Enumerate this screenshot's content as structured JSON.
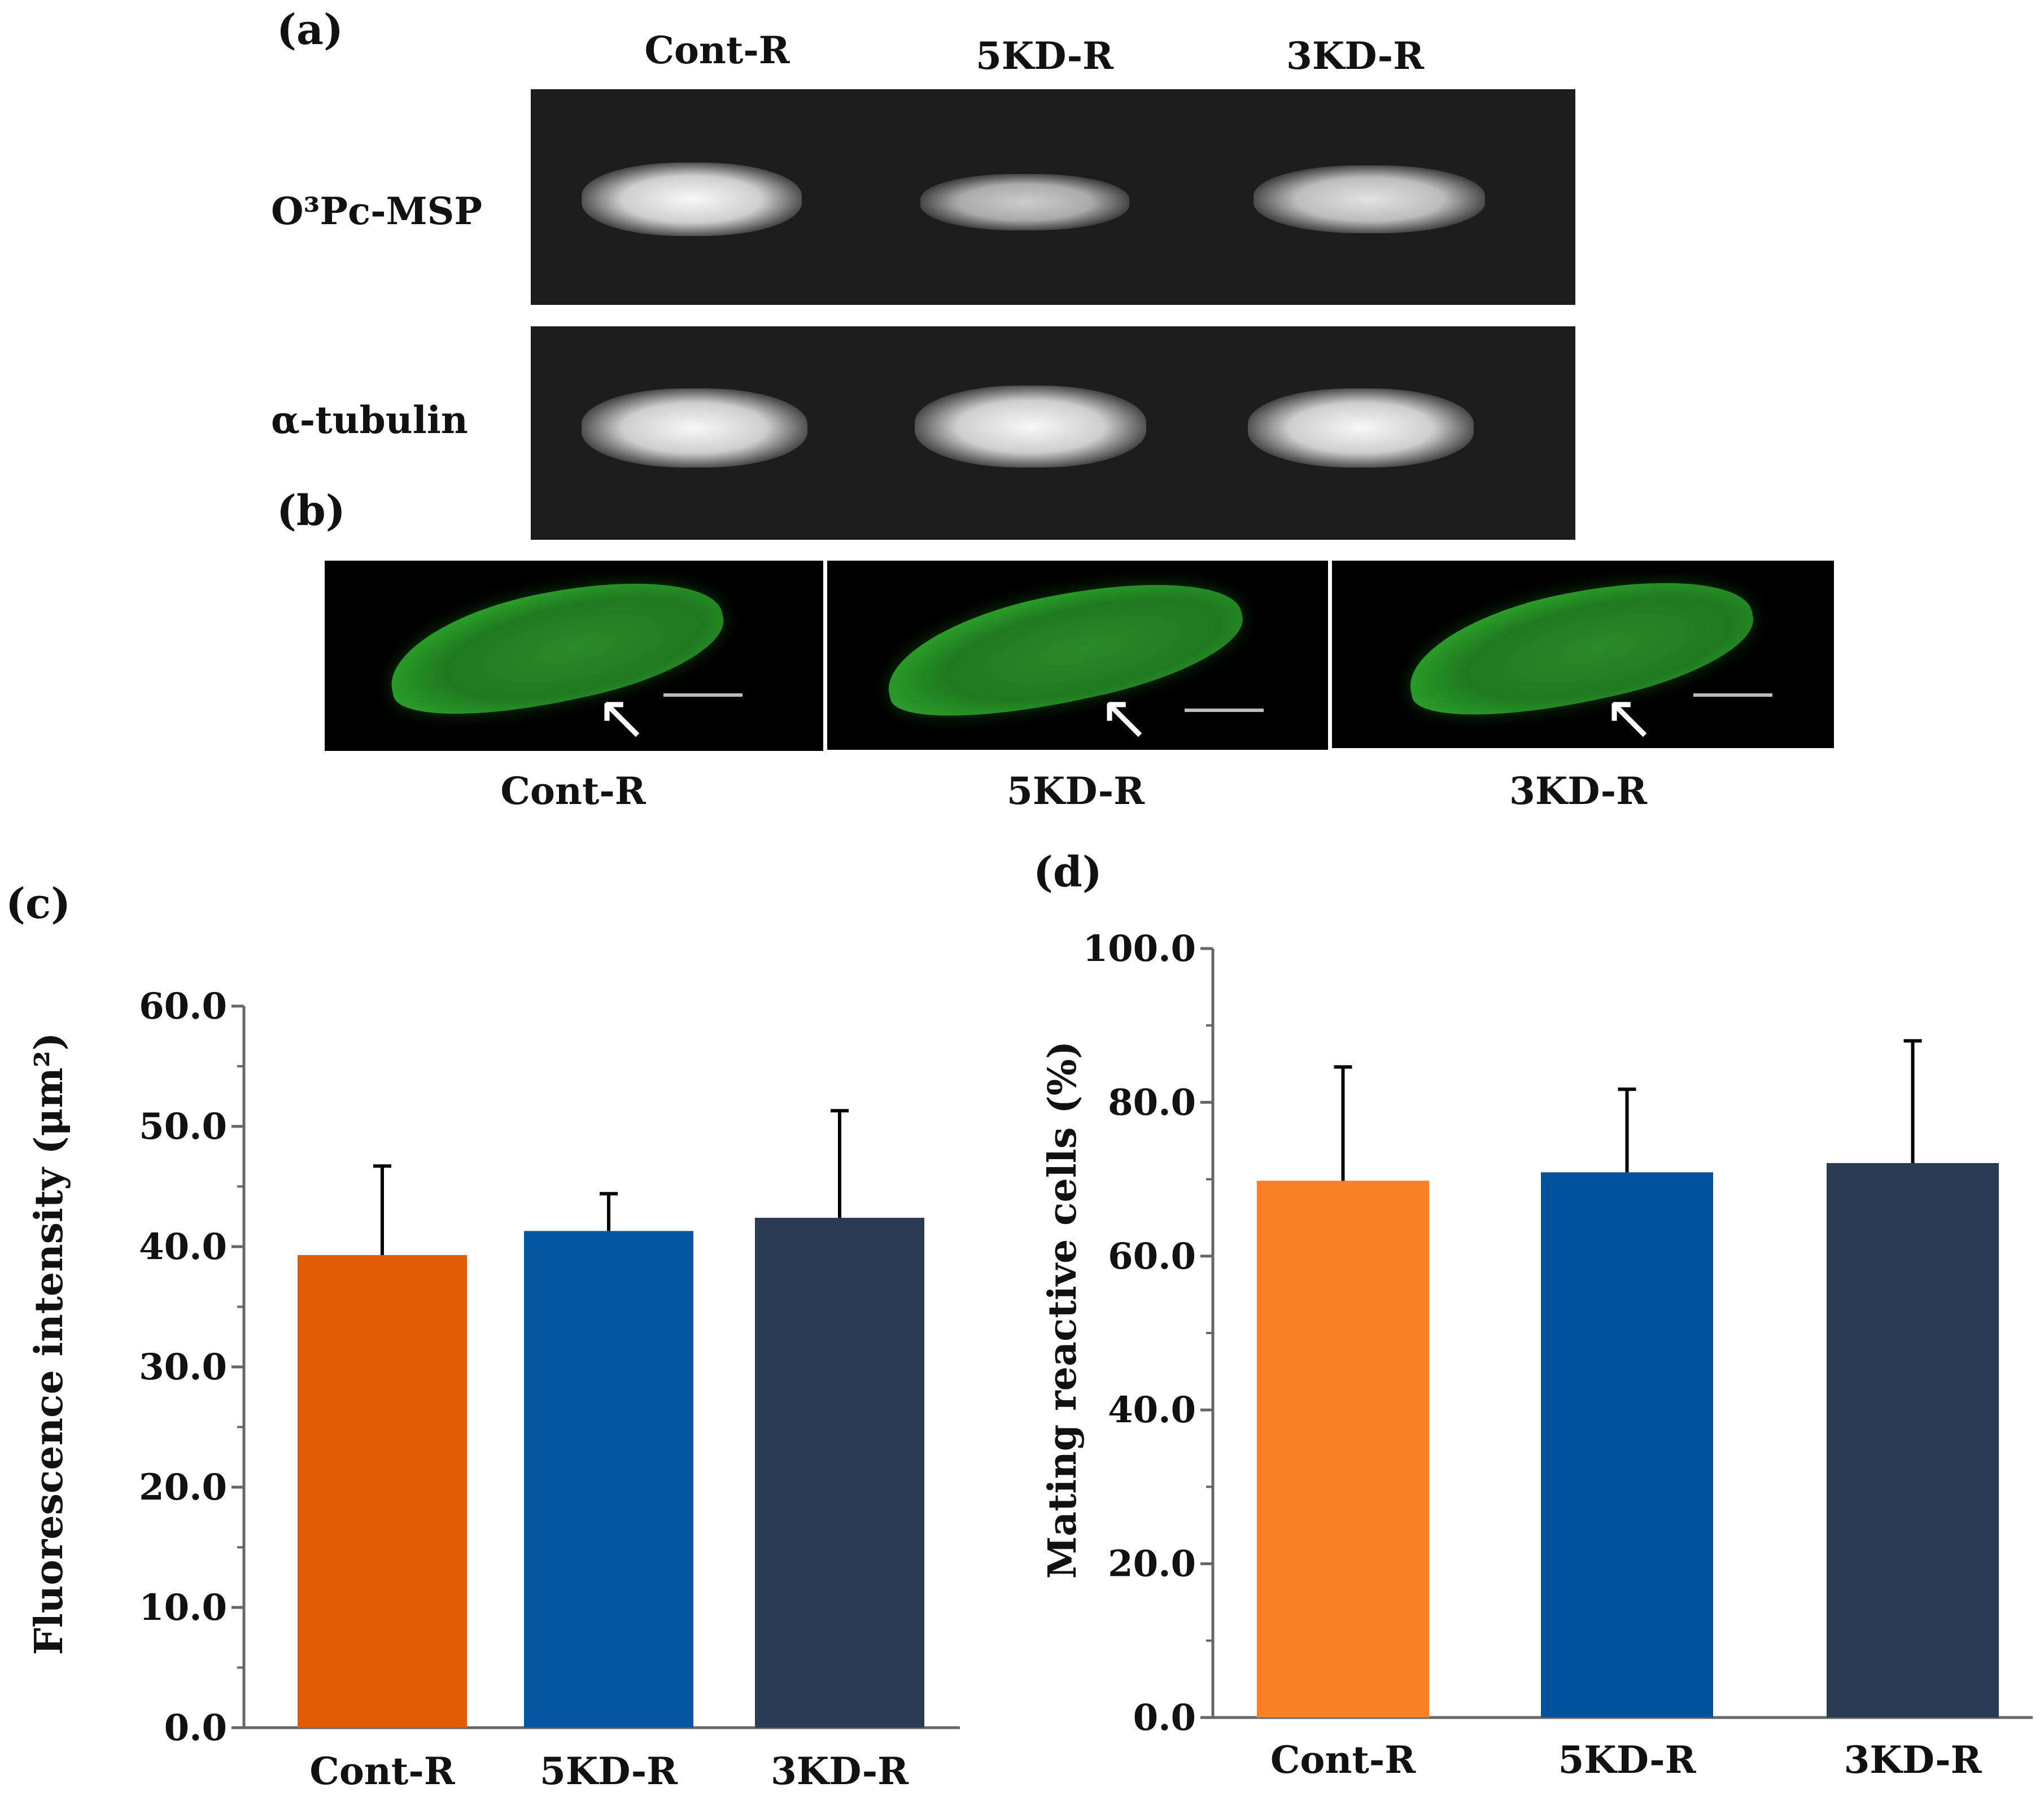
{
  "panels": {
    "a": {
      "letter": "(a)",
      "lanes": [
        "Cont-R",
        "5KD-R",
        "3KD-R"
      ],
      "rows": [
        {
          "label": "O³Pc-MSP"
        },
        {
          "label": "α-tubulin"
        }
      ]
    },
    "b": {
      "letter": "(b)",
      "images": [
        {
          "label": "Cont-R"
        },
        {
          "label": "5KD-R"
        },
        {
          "label": "3KD-R"
        }
      ]
    },
    "c": {
      "letter": "(c)"
    },
    "d": {
      "letter": "(d)"
    }
  },
  "colors": {
    "gel_background": "#1d1d1d",
    "fluorescence": "#1f7a1f",
    "c_bars": [
      "#e05c06",
      "#0456a0",
      "#2b3b53"
    ],
    "d_bars": [
      "#fb7f25",
      "#01549b",
      "#2b3b53"
    ],
    "axis": "#666666",
    "error_bar": "#000000"
  },
  "icons": [
    "arrow-icon",
    "scale-bar"
  ],
  "chart_data": [
    {
      "panel": "c",
      "type": "bar",
      "categories": [
        "Cont-R",
        "5KD-R",
        "3KD-R"
      ],
      "values": [
        39.3,
        41.3,
        42.4
      ],
      "errors": [
        7.4,
        3.1,
        8.9
      ],
      "ylabel": "Fluorescence intensity (μm²)",
      "ylim": [
        0,
        60
      ],
      "yticks": [
        "0.0",
        "10.0",
        "20.0",
        "30.0",
        "40.0",
        "50.0",
        "60.0"
      ],
      "tick_values": [
        0,
        10,
        20,
        30,
        40,
        50,
        60
      ],
      "grid": false
    },
    {
      "panel": "d",
      "type": "bar",
      "categories": [
        "Cont-R",
        "5KD-R",
        "3KD-R"
      ],
      "values": [
        69.8,
        70.9,
        72.1
      ],
      "errors": [
        14.8,
        10.8,
        15.9
      ],
      "ylabel": "Mating reactive cells (%)",
      "ylim": [
        0,
        100
      ],
      "yticks": [
        "0.0",
        "20.0",
        "40.0",
        "60.0",
        "80.0",
        "100.0"
      ],
      "tick_values": [
        0,
        20,
        40,
        60,
        80,
        100
      ],
      "grid": false
    }
  ]
}
